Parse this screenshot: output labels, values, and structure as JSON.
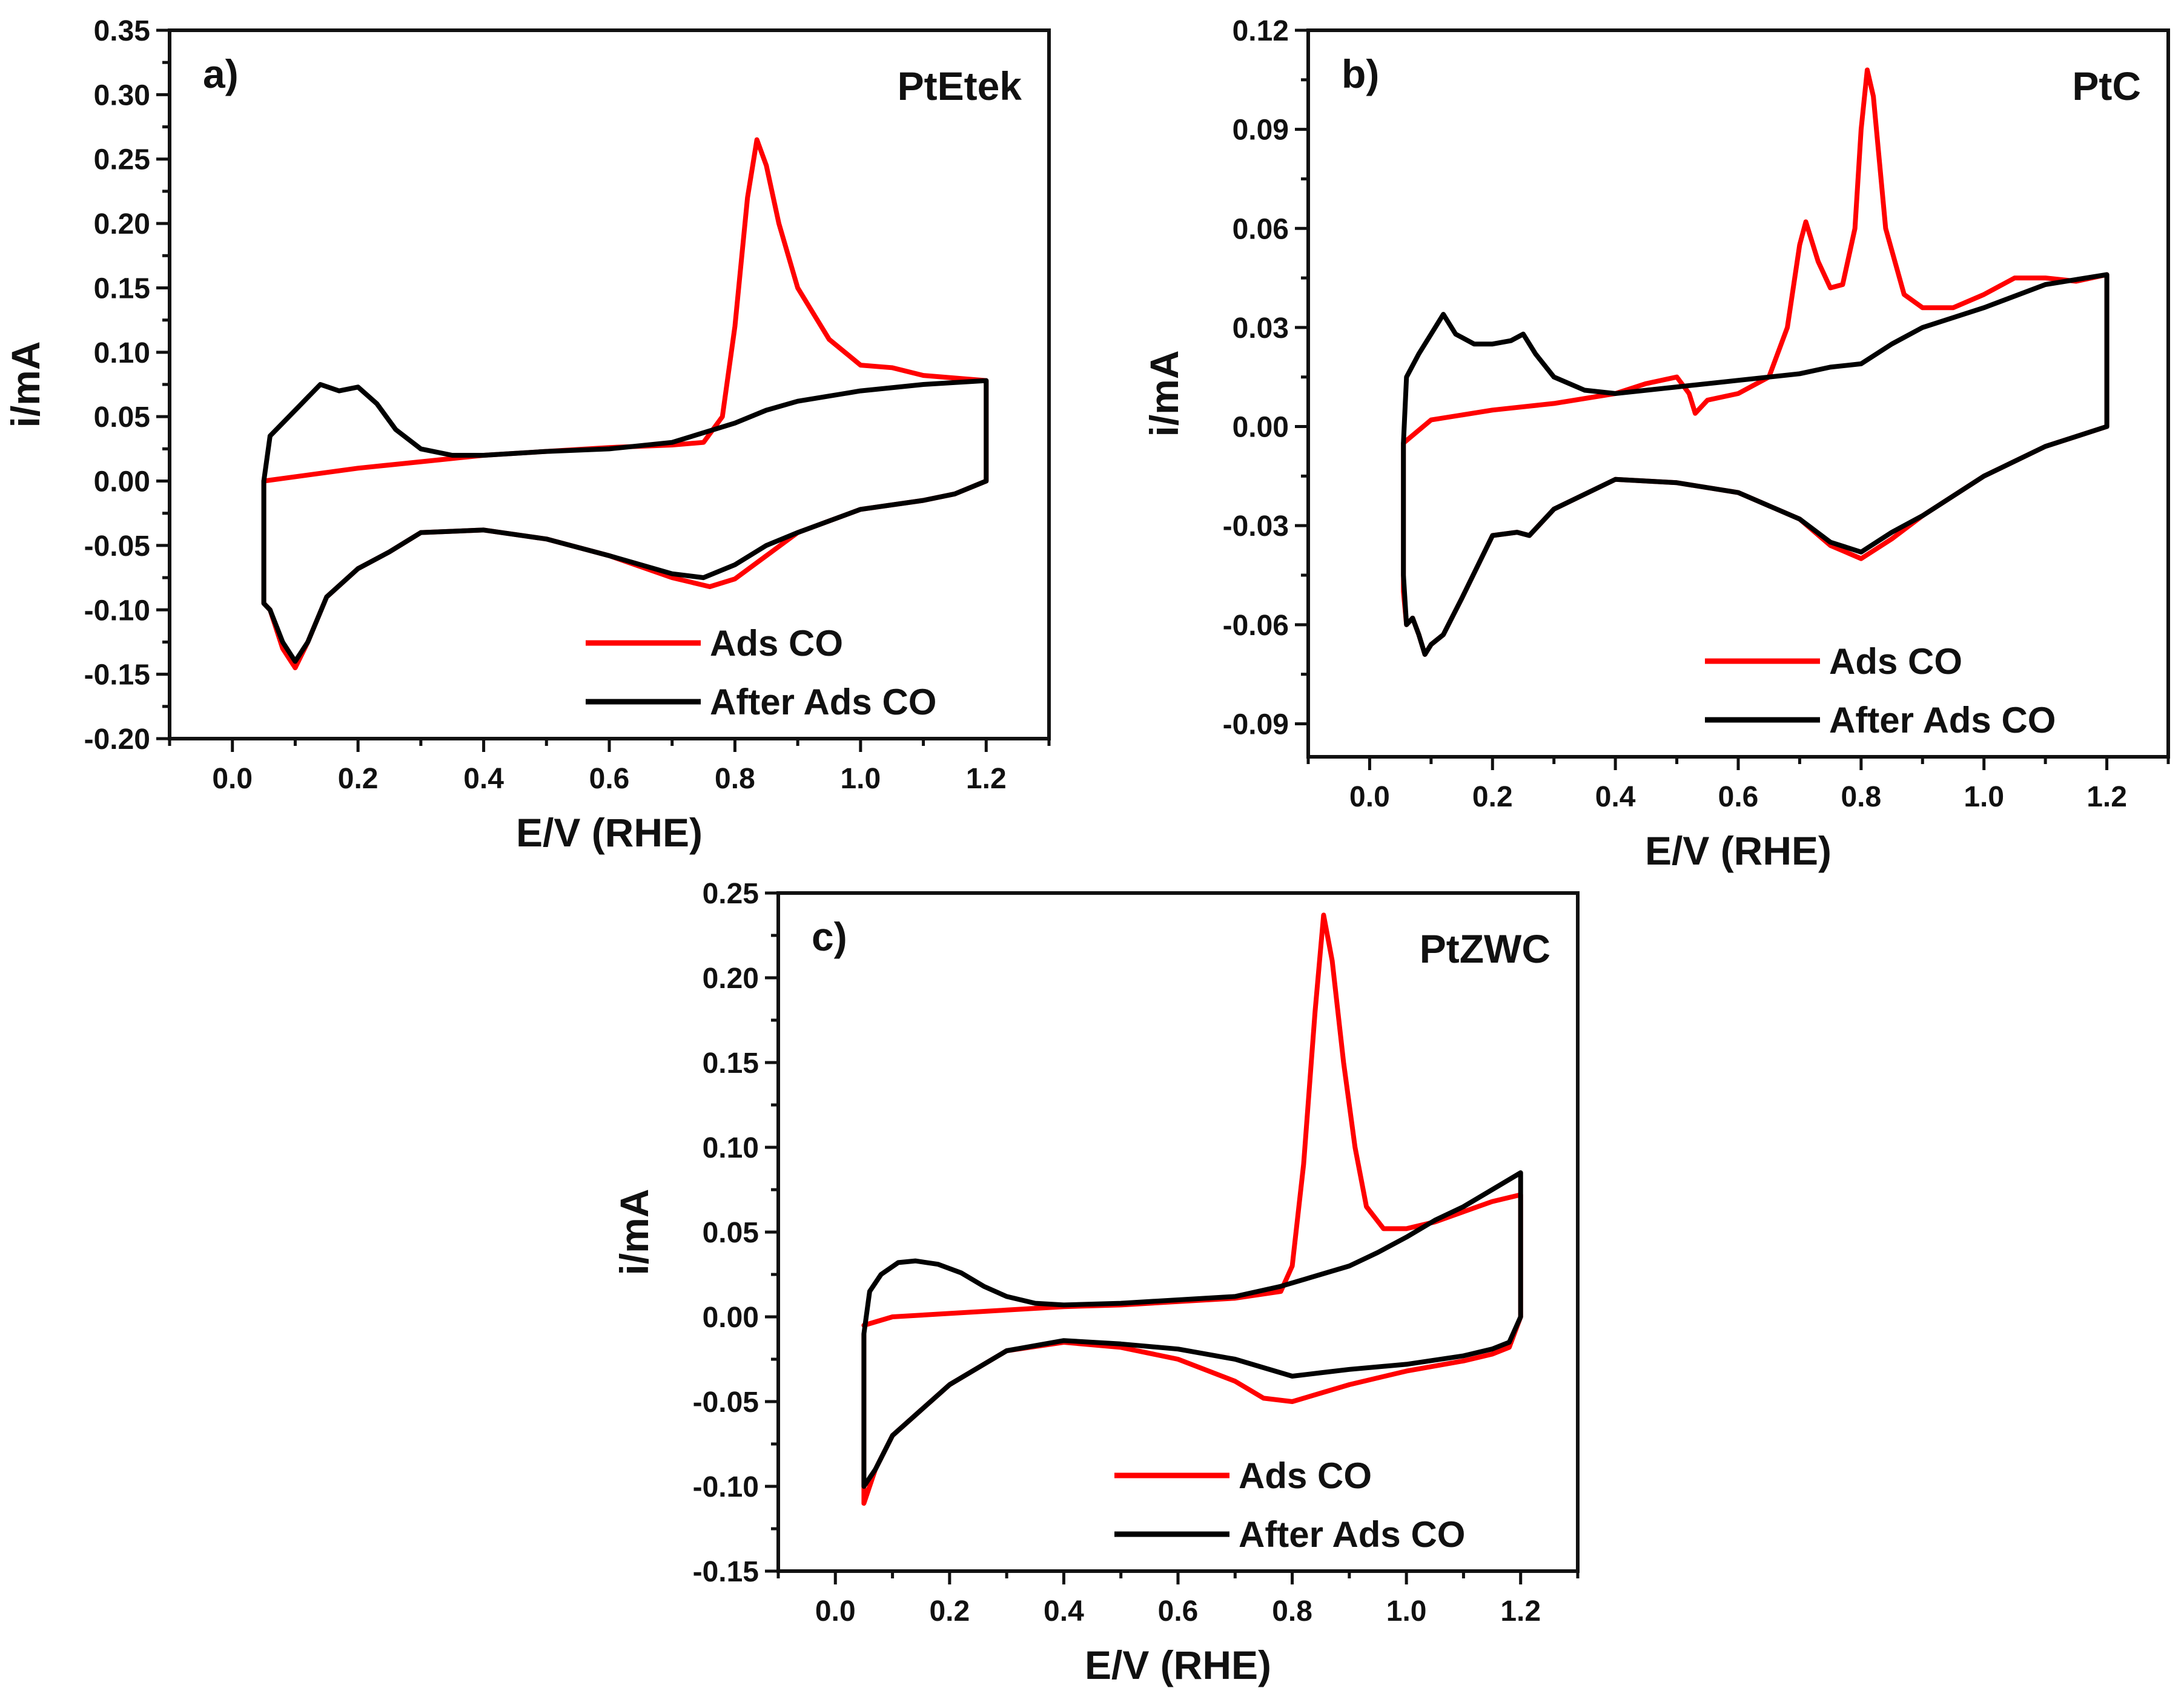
{
  "colors": {
    "ads_co": "#ff0000",
    "after_ads_co": "#000000"
  },
  "chart_data": [
    {
      "type": "line",
      "panel_label": "a)",
      "title": "PtEtek",
      "xlabel": "E/V (RHE)",
      "ylabel": "i/mA",
      "xlim": [
        -0.1,
        1.3
      ],
      "ylim": [
        -0.2,
        0.35
      ],
      "xticks": [
        0.0,
        0.2,
        0.4,
        0.6,
        0.8,
        1.0,
        1.2
      ],
      "xtick_labels": [
        "0.0",
        "0.2",
        "0.4",
        "0.6",
        "0.8",
        "1.0",
        "1.2"
      ],
      "yticks": [
        -0.2,
        -0.15,
        -0.1,
        -0.05,
        0.0,
        0.05,
        0.1,
        0.15,
        0.2,
        0.25,
        0.3,
        0.35
      ],
      "ytick_labels": [
        "-0.20",
        "-0.15",
        "-0.10",
        "-0.05",
        "0.00",
        "0.05",
        "0.10",
        "0.15",
        "0.20",
        "0.25",
        "0.30",
        "0.35"
      ],
      "legend": [
        "Ads CO",
        "After Ads CO"
      ],
      "legend_position": "bottom-right",
      "series": [
        {
          "name": "Ads CO",
          "color": "#ff0000",
          "x": [
            0.05,
            0.2,
            0.4,
            0.6,
            0.7,
            0.75,
            0.78,
            0.8,
            0.82,
            0.835,
            0.85,
            0.87,
            0.9,
            0.95,
            1.0,
            1.05,
            1.1,
            1.15,
            1.2,
            1.2,
            1.15,
            1.1,
            1.0,
            0.9,
            0.85,
            0.8,
            0.76,
            0.7,
            0.6,
            0.5,
            0.4,
            0.3,
            0.25,
            0.2,
            0.15,
            0.12,
            0.1,
            0.08,
            0.06,
            0.05,
            0.05
          ],
          "y": [
            0.0,
            0.01,
            0.02,
            0.026,
            0.028,
            0.03,
            0.05,
            0.12,
            0.22,
            0.265,
            0.245,
            0.2,
            0.15,
            0.11,
            0.09,
            0.088,
            0.082,
            0.08,
            0.078,
            0.0,
            -0.01,
            -0.015,
            -0.022,
            -0.04,
            -0.058,
            -0.076,
            -0.082,
            -0.075,
            -0.058,
            -0.045,
            -0.038,
            -0.04,
            -0.055,
            -0.068,
            -0.09,
            -0.125,
            -0.145,
            -0.13,
            -0.1,
            -0.095,
            0.0
          ]
        },
        {
          "name": "After Ads CO",
          "color": "#000000",
          "x": [
            0.05,
            0.06,
            0.08,
            0.11,
            0.14,
            0.17,
            0.2,
            0.23,
            0.26,
            0.3,
            0.35,
            0.4,
            0.5,
            0.6,
            0.7,
            0.8,
            0.85,
            0.9,
            1.0,
            1.1,
            1.2,
            1.2,
            1.15,
            1.1,
            1.0,
            0.9,
            0.85,
            0.8,
            0.75,
            0.7,
            0.6,
            0.5,
            0.4,
            0.3,
            0.25,
            0.2,
            0.15,
            0.12,
            0.1,
            0.08,
            0.06,
            0.05,
            0.05
          ],
          "y": [
            0.0,
            0.035,
            0.045,
            0.06,
            0.075,
            0.07,
            0.073,
            0.06,
            0.04,
            0.025,
            0.02,
            0.02,
            0.023,
            0.025,
            0.03,
            0.045,
            0.055,
            0.062,
            0.07,
            0.075,
            0.078,
            0.0,
            -0.01,
            -0.015,
            -0.022,
            -0.04,
            -0.05,
            -0.065,
            -0.075,
            -0.072,
            -0.058,
            -0.045,
            -0.038,
            -0.04,
            -0.055,
            -0.068,
            -0.09,
            -0.125,
            -0.14,
            -0.125,
            -0.1,
            -0.095,
            0.0
          ]
        }
      ]
    },
    {
      "type": "line",
      "panel_label": "b)",
      "title": "PtC",
      "xlabel": "E/V (RHE)",
      "ylabel": "i/mA",
      "xlim": [
        -0.1,
        1.3
      ],
      "ylim": [
        -0.1,
        0.12
      ],
      "xticks": [
        0.0,
        0.2,
        0.4,
        0.6,
        0.8,
        1.0,
        1.2
      ],
      "xtick_labels": [
        "0.0",
        "0.2",
        "0.4",
        "0.6",
        "0.8",
        "1.0",
        "1.2"
      ],
      "yticks": [
        -0.09,
        -0.06,
        -0.03,
        0.0,
        0.03,
        0.06,
        0.09,
        0.12
      ],
      "ytick_labels": [
        "-0.09",
        "-0.06",
        "-0.03",
        "0.00",
        "0.03",
        "0.06",
        "0.09",
        "0.12"
      ],
      "legend": [
        "Ads CO",
        "After Ads CO"
      ],
      "legend_position": "bottom-right",
      "series": [
        {
          "name": "Ads CO",
          "color": "#ff0000",
          "x": [
            0.055,
            0.1,
            0.2,
            0.3,
            0.4,
            0.45,
            0.5,
            0.52,
            0.53,
            0.55,
            0.6,
            0.65,
            0.68,
            0.7,
            0.71,
            0.73,
            0.75,
            0.77,
            0.79,
            0.8,
            0.81,
            0.82,
            0.84,
            0.87,
            0.9,
            0.95,
            1.0,
            1.05,
            1.1,
            1.15,
            1.2,
            1.2,
            1.15,
            1.1,
            1.0,
            0.9,
            0.85,
            0.8,
            0.75,
            0.7,
            0.6,
            0.5,
            0.4,
            0.3,
            0.26,
            0.24,
            0.2,
            0.15,
            0.12,
            0.1,
            0.09,
            0.08,
            0.07,
            0.06,
            0.055,
            0.055
          ],
          "y": [
            -0.005,
            0.002,
            0.005,
            0.007,
            0.01,
            0.013,
            0.015,
            0.01,
            0.004,
            0.008,
            0.01,
            0.015,
            0.03,
            0.055,
            0.062,
            0.05,
            0.042,
            0.043,
            0.06,
            0.09,
            0.108,
            0.1,
            0.06,
            0.04,
            0.036,
            0.036,
            0.04,
            0.045,
            0.045,
            0.044,
            0.046,
            0.0,
            -0.003,
            -0.006,
            -0.015,
            -0.027,
            -0.034,
            -0.04,
            -0.036,
            -0.028,
            -0.02,
            -0.017,
            -0.016,
            -0.025,
            -0.033,
            -0.032,
            -0.033,
            -0.052,
            -0.063,
            -0.066,
            -0.069,
            -0.063,
            -0.058,
            -0.06,
            -0.05,
            -0.005
          ]
        },
        {
          "name": "After Ads CO",
          "color": "#000000",
          "x": [
            0.055,
            0.06,
            0.08,
            0.1,
            0.12,
            0.14,
            0.17,
            0.2,
            0.23,
            0.25,
            0.27,
            0.3,
            0.35,
            0.4,
            0.5,
            0.6,
            0.7,
            0.75,
            0.8,
            0.85,
            0.9,
            1.0,
            1.1,
            1.2,
            1.2,
            1.15,
            1.1,
            1.0,
            0.9,
            0.85,
            0.8,
            0.75,
            0.7,
            0.6,
            0.5,
            0.4,
            0.3,
            0.26,
            0.24,
            0.2,
            0.15,
            0.12,
            0.1,
            0.09,
            0.08,
            0.07,
            0.06,
            0.055,
            0.055
          ],
          "y": [
            -0.005,
            0.015,
            0.022,
            0.028,
            0.034,
            0.028,
            0.025,
            0.025,
            0.026,
            0.028,
            0.022,
            0.015,
            0.011,
            0.01,
            0.012,
            0.014,
            0.016,
            0.018,
            0.019,
            0.025,
            0.03,
            0.036,
            0.043,
            0.046,
            0.0,
            -0.003,
            -0.006,
            -0.015,
            -0.027,
            -0.032,
            -0.038,
            -0.035,
            -0.028,
            -0.02,
            -0.017,
            -0.016,
            -0.025,
            -0.033,
            -0.032,
            -0.033,
            -0.052,
            -0.063,
            -0.066,
            -0.069,
            -0.063,
            -0.058,
            -0.06,
            -0.045,
            -0.005
          ]
        }
      ]
    },
    {
      "type": "line",
      "panel_label": "c)",
      "title": "PtZWC",
      "xlabel": "E/V (RHE)",
      "ylabel": "i/mA",
      "xlim": [
        -0.1,
        1.3
      ],
      "ylim": [
        -0.15,
        0.25
      ],
      "xticks": [
        0.0,
        0.2,
        0.4,
        0.6,
        0.8,
        1.0,
        1.2
      ],
      "xtick_labels": [
        "0.0",
        "0.2",
        "0.4",
        "0.6",
        "0.8",
        "1.0",
        "1.2"
      ],
      "yticks": [
        -0.15,
        -0.1,
        -0.05,
        0.0,
        0.05,
        0.1,
        0.15,
        0.2,
        0.25
      ],
      "ytick_labels": [
        "-0.15",
        "-0.10",
        "-0.05",
        "0.00",
        "0.05",
        "0.10",
        "0.15",
        "0.20",
        "0.25"
      ],
      "legend": [
        "Ads CO",
        "After Ads CO"
      ],
      "legend_position": "bottom-right",
      "series": [
        {
          "name": "Ads CO",
          "color": "#ff0000",
          "x": [
            0.05,
            0.1,
            0.2,
            0.3,
            0.4,
            0.5,
            0.6,
            0.7,
            0.78,
            0.8,
            0.82,
            0.84,
            0.855,
            0.87,
            0.89,
            0.91,
            0.93,
            0.96,
            1.0,
            1.05,
            1.1,
            1.15,
            1.2,
            1.2,
            1.18,
            1.15,
            1.1,
            1.0,
            0.9,
            0.85,
            0.8,
            0.75,
            0.7,
            0.6,
            0.5,
            0.4,
            0.3,
            0.2,
            0.15,
            0.1,
            0.07,
            0.05,
            0.05
          ],
          "y": [
            -0.005,
            0.0,
            0.002,
            0.004,
            0.006,
            0.007,
            0.009,
            0.011,
            0.015,
            0.03,
            0.09,
            0.18,
            0.237,
            0.21,
            0.15,
            0.1,
            0.065,
            0.052,
            0.052,
            0.056,
            0.062,
            0.068,
            0.072,
            0.0,
            -0.018,
            -0.022,
            -0.026,
            -0.032,
            -0.04,
            -0.045,
            -0.05,
            -0.048,
            -0.038,
            -0.025,
            -0.018,
            -0.015,
            -0.02,
            -0.04,
            -0.055,
            -0.07,
            -0.09,
            -0.11,
            -0.01
          ]
        },
        {
          "name": "After Ads CO",
          "color": "#000000",
          "x": [
            0.05,
            0.06,
            0.08,
            0.11,
            0.14,
            0.18,
            0.22,
            0.26,
            0.3,
            0.35,
            0.4,
            0.5,
            0.6,
            0.7,
            0.78,
            0.85,
            0.9,
            0.95,
            1.0,
            1.05,
            1.1,
            1.15,
            1.2,
            1.2,
            1.18,
            1.15,
            1.1,
            1.0,
            0.9,
            0.85,
            0.8,
            0.75,
            0.7,
            0.6,
            0.5,
            0.4,
            0.3,
            0.2,
            0.15,
            0.1,
            0.07,
            0.05,
            0.05
          ],
          "y": [
            -0.01,
            0.015,
            0.025,
            0.032,
            0.033,
            0.031,
            0.026,
            0.018,
            0.012,
            0.008,
            0.007,
            0.008,
            0.01,
            0.012,
            0.018,
            0.025,
            0.03,
            0.038,
            0.047,
            0.057,
            0.065,
            0.075,
            0.085,
            0.0,
            -0.015,
            -0.019,
            -0.023,
            -0.028,
            -0.031,
            -0.033,
            -0.035,
            -0.03,
            -0.025,
            -0.019,
            -0.016,
            -0.014,
            -0.02,
            -0.04,
            -0.055,
            -0.07,
            -0.09,
            -0.1,
            -0.01
          ]
        }
      ]
    }
  ]
}
